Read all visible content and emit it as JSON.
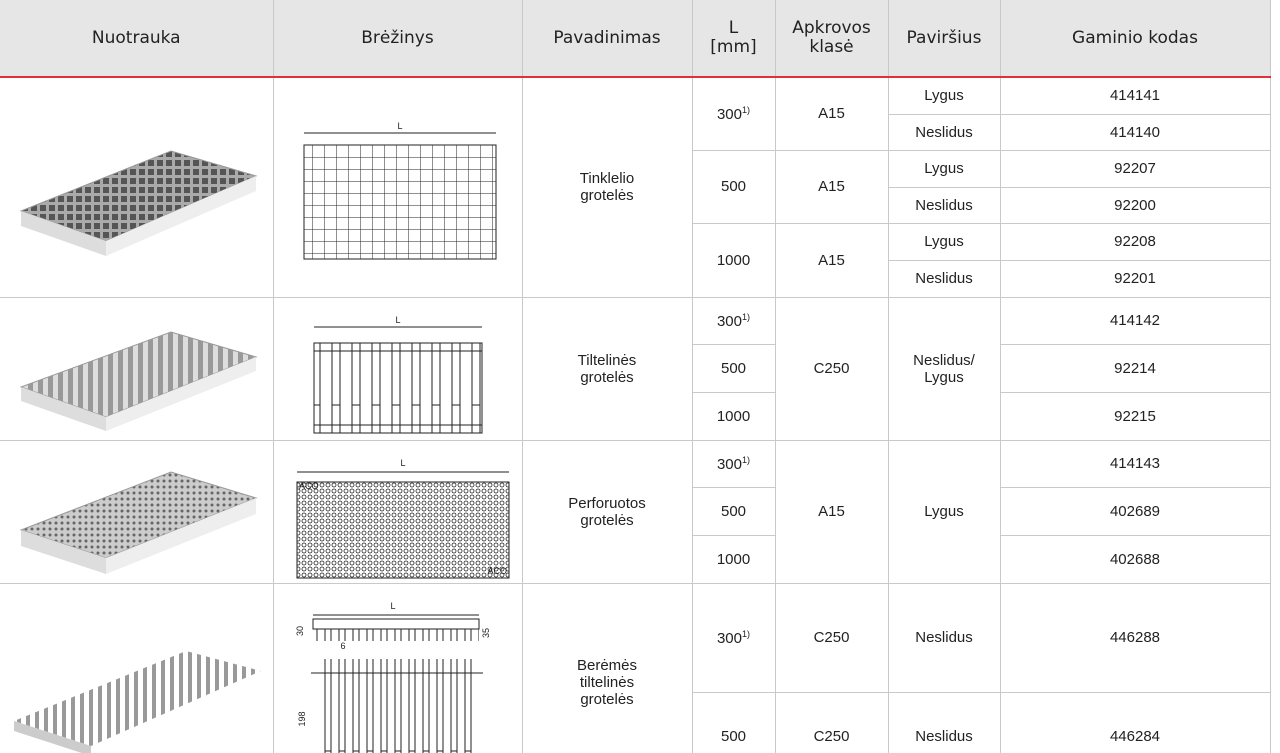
{
  "header": [
    "Nuotrauka",
    "Brėžinys",
    "Pavadinimas",
    "L\n[mm]",
    "Apkrovos\nklasė",
    "Paviršius",
    "Gaminio kodas"
  ],
  "groups": [
    {
      "name": "Tinklelio\ngrotelės",
      "drawing_labels": [
        "L"
      ],
      "lengths": [
        {
          "l": "300",
          "note": "1)",
          "class": "A15",
          "variants": [
            {
              "surface": "Lygus",
              "code": "414141"
            },
            {
              "surface": "Neslidus",
              "code": "414140"
            }
          ]
        },
        {
          "l": "500",
          "class": "A15",
          "variants": [
            {
              "surface": "Lygus",
              "code": "92207"
            },
            {
              "surface": "Neslidus",
              "code": "92200"
            }
          ]
        },
        {
          "l": "1000",
          "class": "A15",
          "variants": [
            {
              "surface": "Lygus",
              "code": "92208"
            },
            {
              "surface": "Neslidus",
              "code": "92201"
            }
          ]
        }
      ]
    },
    {
      "name": "Tiltelinės\ngrotelės",
      "drawing_labels": [
        "L"
      ],
      "class": "C250",
      "surface": "Neslidus/\nLygus",
      "rows": [
        {
          "l": "300",
          "note": "1)",
          "code": "414142"
        },
        {
          "l": "500",
          "code": "92214"
        },
        {
          "l": "1000",
          "code": "92215"
        }
      ]
    },
    {
      "name": "Perforuotos\ngrotelės",
      "drawing_labels": [
        "L",
        "ACO",
        "ACO"
      ],
      "class": "A15",
      "surface": "Lygus",
      "rows": [
        {
          "l": "300",
          "note": "1)",
          "code": "414143"
        },
        {
          "l": "500",
          "code": "402689"
        },
        {
          "l": "1000",
          "code": "402688"
        }
      ]
    },
    {
      "name": "Berėmės\ntiltelinės\ngrotelės",
      "drawing_labels": [
        "L",
        "30",
        "35",
        "6",
        "198"
      ],
      "rows": [
        {
          "l": "300",
          "note": "1)",
          "class": "C250",
          "surface": "Neslidus",
          "code": "446288"
        },
        {
          "l": "500",
          "class": "C250",
          "surface": "Neslidus",
          "code": "446284"
        }
      ]
    }
  ]
}
